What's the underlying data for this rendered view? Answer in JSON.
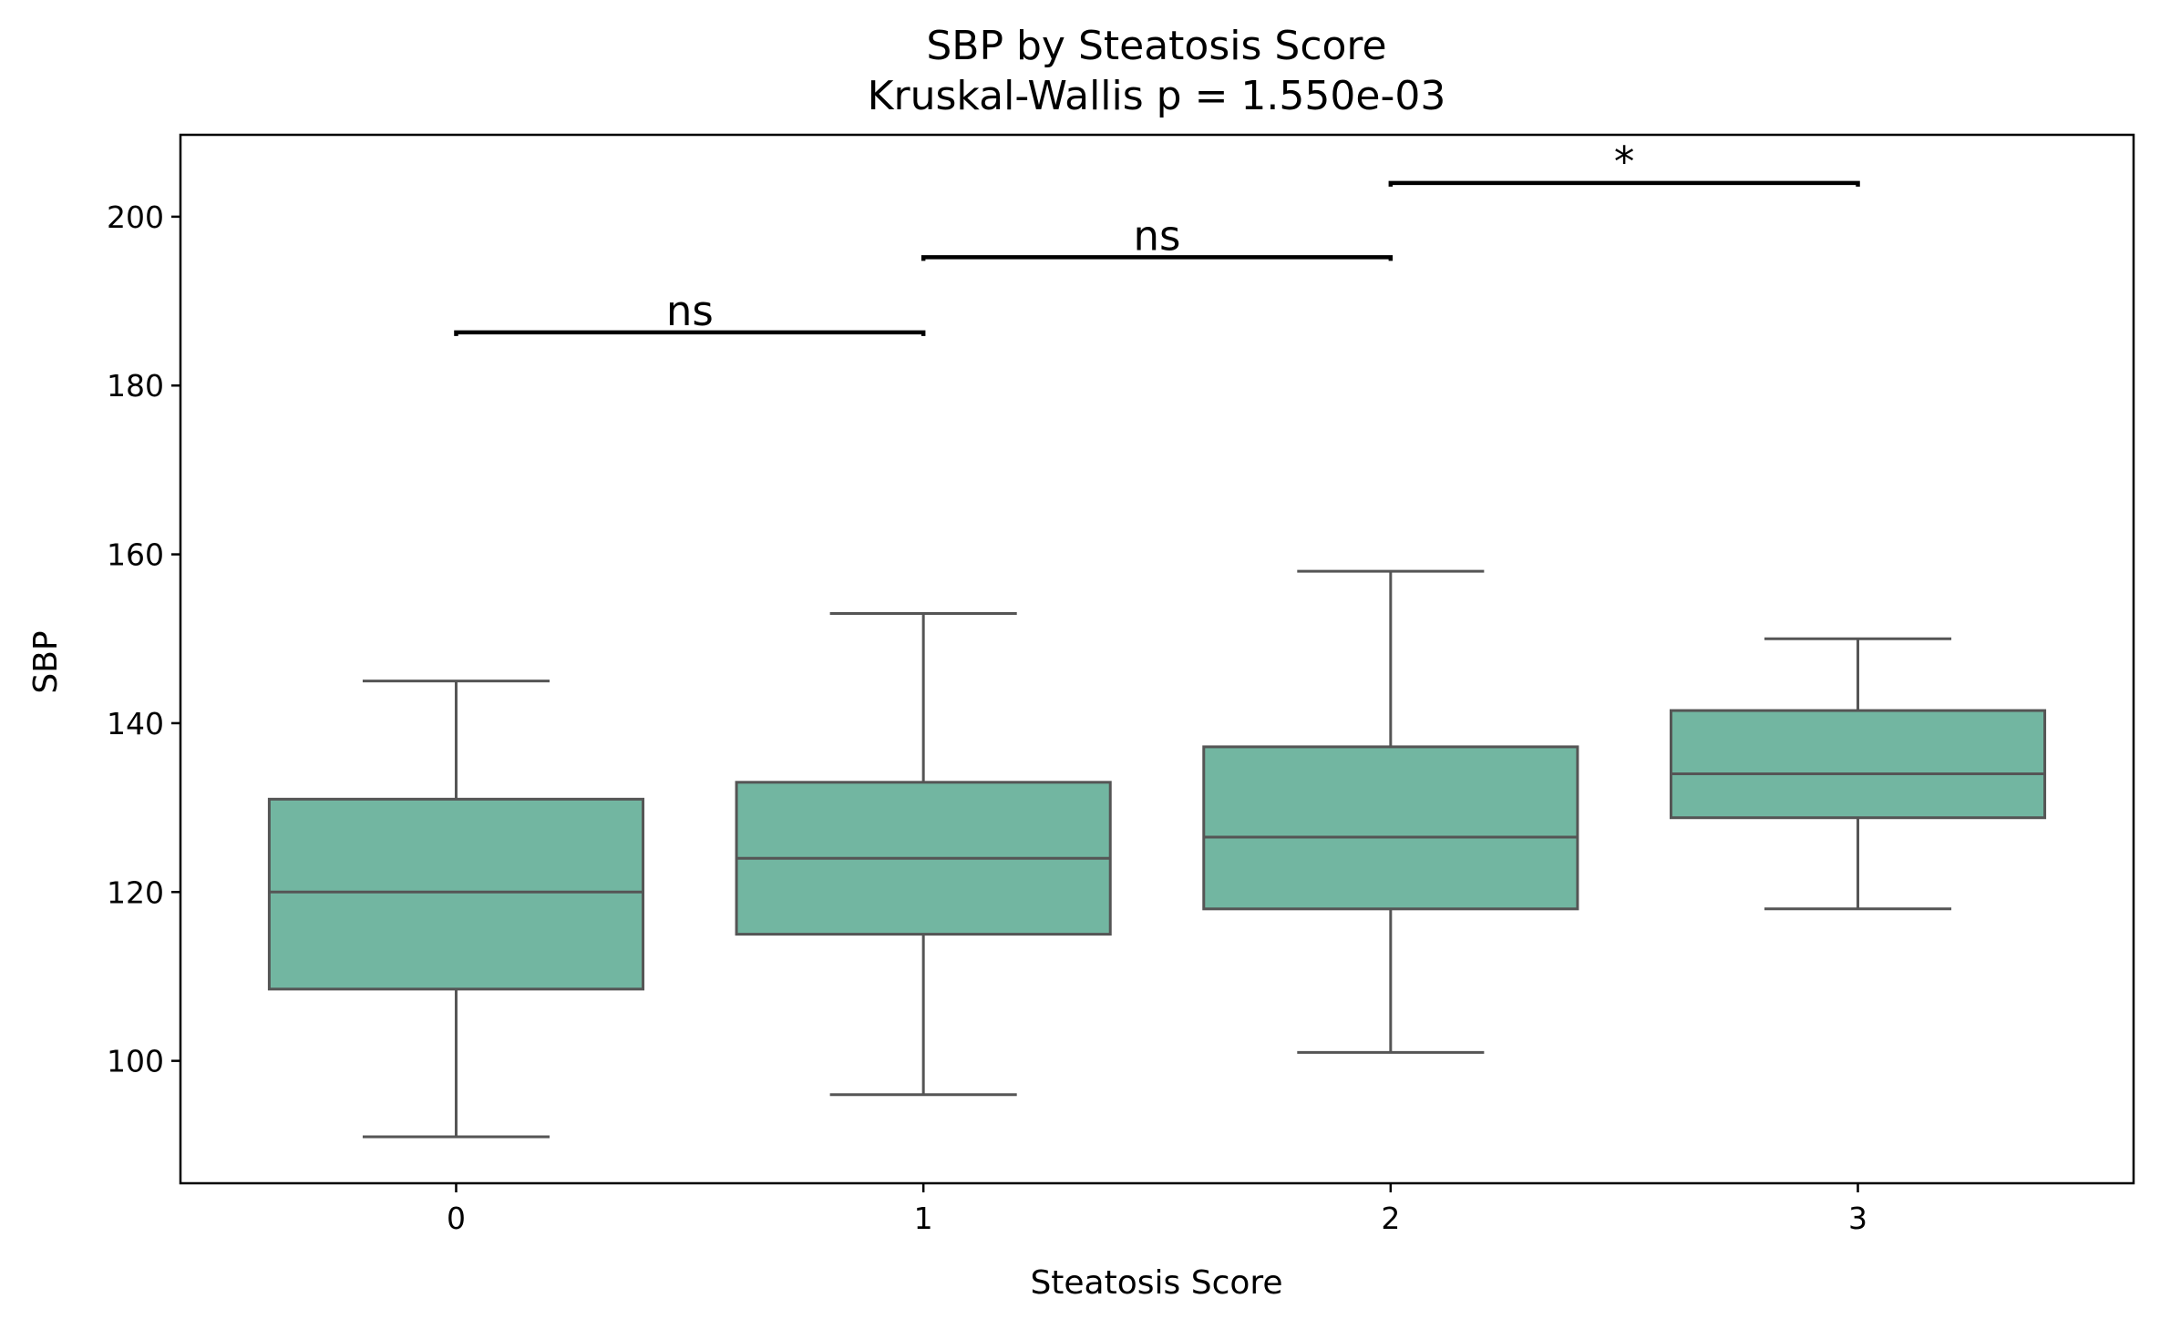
{
  "chart_data": {
    "type": "box",
    "title": "SBP by Steatosis Score",
    "subtitle": "Kruskal-Wallis p = 1.550e-03",
    "xlabel": "Steatosis Score",
    "ylabel": "SBP",
    "categories": [
      "0",
      "1",
      "2",
      "3"
    ],
    "ylim": [
      85.5,
      209.7
    ],
    "yticks": [
      100,
      120,
      140,
      160,
      180,
      200
    ],
    "ytick_labels": [
      "100",
      "120",
      "140",
      "160",
      "180",
      "200"
    ],
    "grid": false,
    "box_color": "#72b6a1",
    "line_color": "#555555",
    "boxes": [
      {
        "category": "0",
        "whisker_low": 91,
        "q1": 108.5,
        "median": 120,
        "q3": 131,
        "whisker_high": 145
      },
      {
        "category": "1",
        "whisker_low": 96,
        "q1": 115,
        "median": 124,
        "q3": 133,
        "whisker_high": 153
      },
      {
        "category": "2",
        "whisker_low": 101,
        "q1": 118,
        "median": 126.5,
        "q3": 137.2,
        "whisker_high": 158
      },
      {
        "category": "3",
        "whisker_low": 118,
        "q1": 128.8,
        "median": 134,
        "q3": 141.5,
        "whisker_high": 150
      }
    ],
    "annotations": [
      {
        "from": "0",
        "to": "1",
        "y": 186.3,
        "label": "ns"
      },
      {
        "from": "1",
        "to": "2",
        "y": 195.2,
        "label": "ns"
      },
      {
        "from": "2",
        "to": "3",
        "y": 204.0,
        "label": "*"
      }
    ]
  }
}
